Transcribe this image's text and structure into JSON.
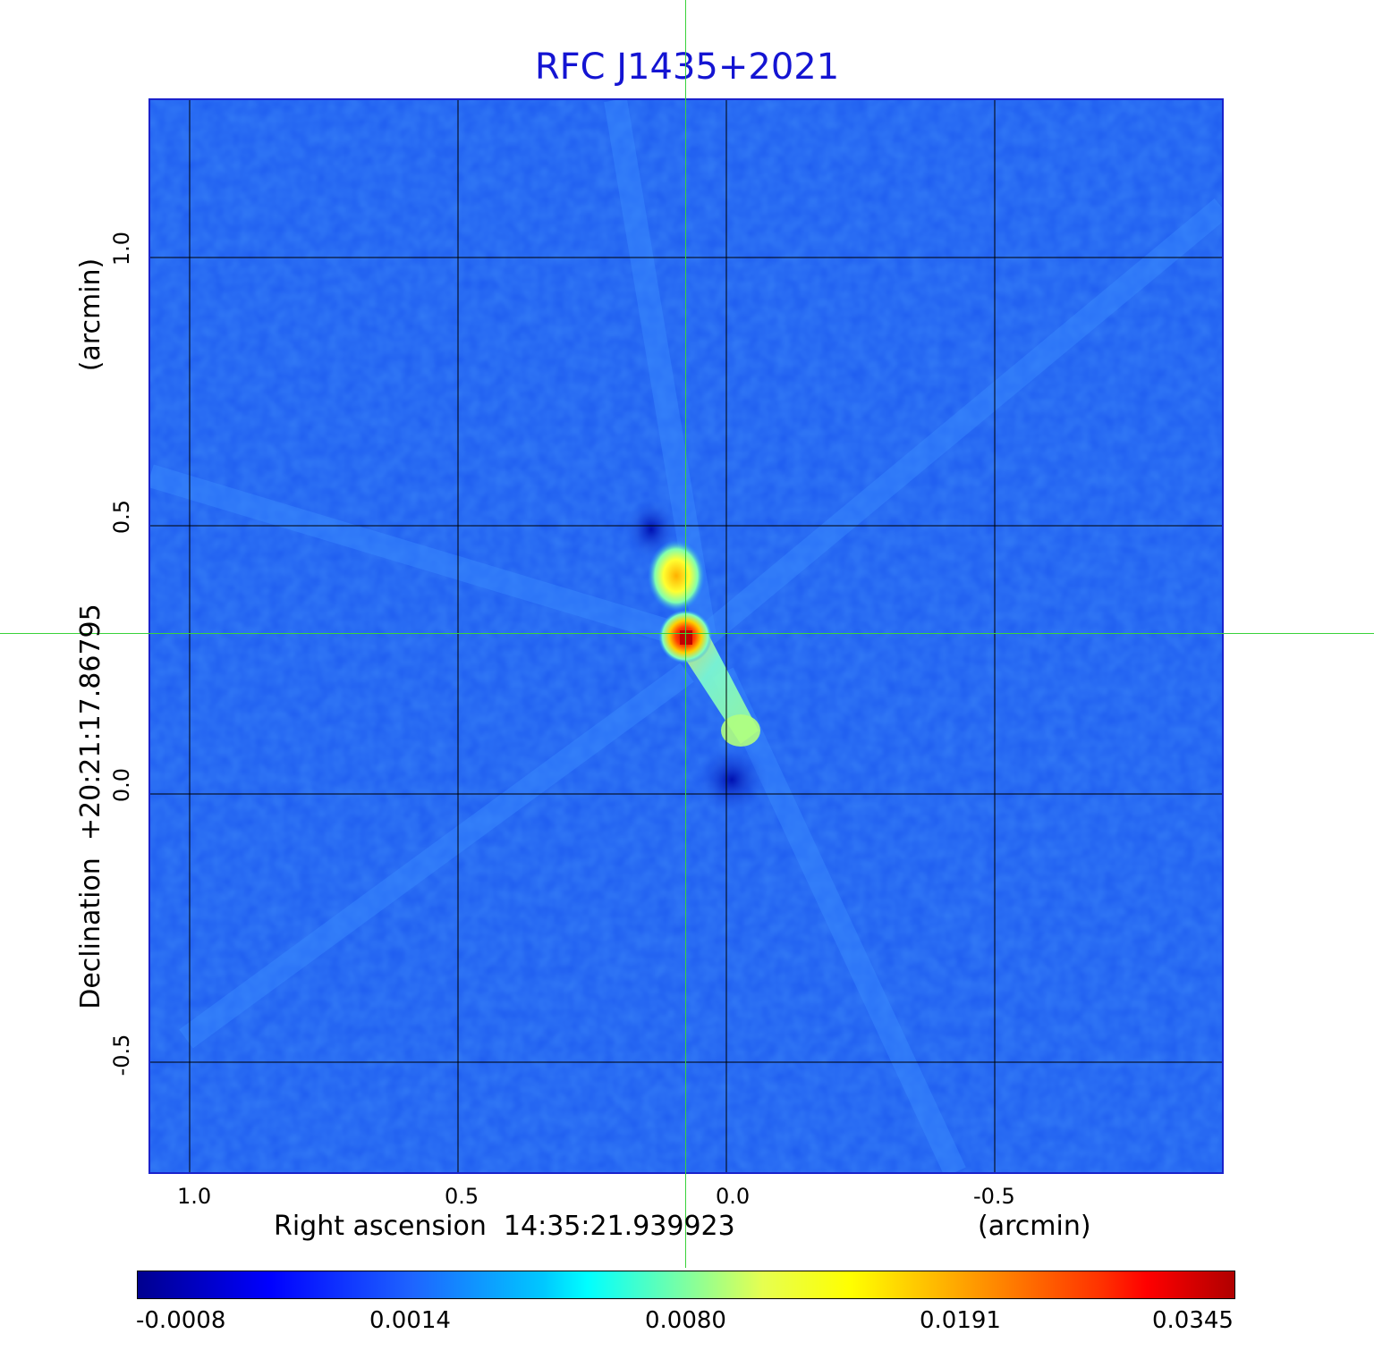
{
  "title": "RFC J1435+2021",
  "x_axis": {
    "label": "Right ascension  14:35:21.939923",
    "unit": "(arcmin)",
    "ticks": [
      "1.0",
      "0.5",
      "0.0",
      "-0.5"
    ]
  },
  "y_axis": {
    "label": "Declination  +20:21:17.86795",
    "unit": "(arcmin)",
    "ticks": [
      "1.0",
      "0.5",
      "0.0",
      "-0.5"
    ]
  },
  "colorbar": {
    "ticks": [
      "-0.0008",
      "0.0014",
      "0.0080",
      "0.0191",
      "0.0345"
    ],
    "colors": [
      "#00008f",
      "#0000ff",
      "#1e64ff",
      "#00ffff",
      "#7fffa0",
      "#ffff00",
      "#ffa500",
      "#ff0000",
      "#b00000"
    ]
  },
  "image": {
    "background_color": "#1e5cf0",
    "source": {
      "peak_color": "#d01010",
      "lobe_color": "#ffd000",
      "jet_color": "#a0ffd0"
    },
    "crosshair_color": "#3ad23a",
    "grid_color": "#000000"
  }
}
